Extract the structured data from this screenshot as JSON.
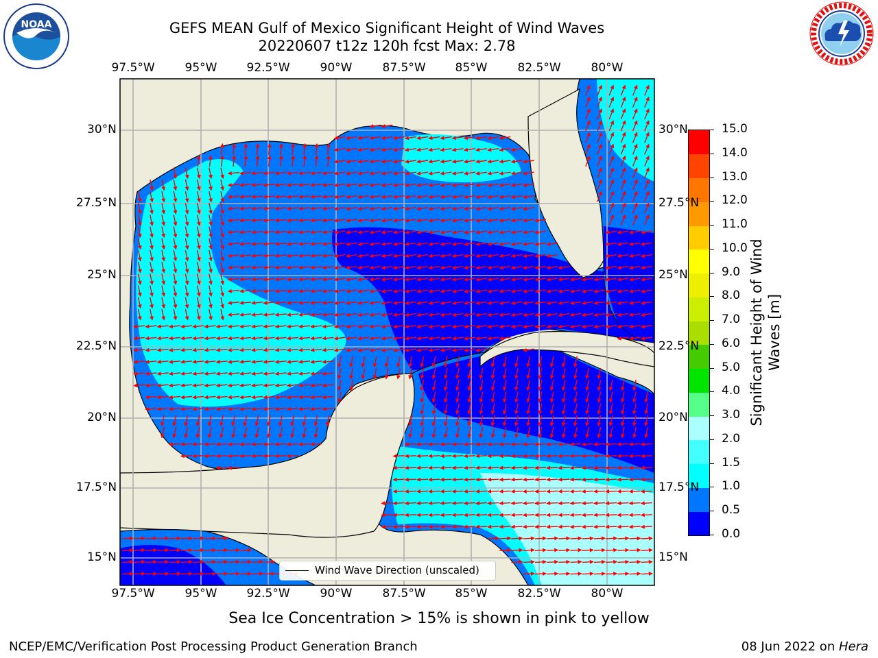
{
  "header": {
    "title_line1": "GEFS MEAN Gulf of Mexico Significant Height of Wind Waves",
    "title_line2": "20220607 t12z 120h fcst   Max: 2.78"
  },
  "logos": {
    "left": {
      "name": "NOAA",
      "ring_text": "NATIONAL OCEANIC AND ATMOSPHERIC ADMINISTRATION · U.S. DEPARTMENT OF COMMERCE"
    },
    "right": {
      "name": "NATIONAL WEATHER SERVICE"
    }
  },
  "map": {
    "lon_labels": [
      "97.5°W",
      "95°W",
      "92.5°W",
      "90°W",
      "87.5°W",
      "85°W",
      "82.5°W",
      "80°W"
    ],
    "lat_labels": [
      "30°N",
      "27.5°N",
      "25°N",
      "22.5°N",
      "20°N",
      "17.5°N",
      "15°N"
    ],
    "colors": {
      "land": "#eeeddc",
      "arrow": "#ff0000",
      "grid": "#b0b0b0",
      "coast": "#000000"
    }
  },
  "legend": {
    "label": "Wind Wave Direction (unscaled)"
  },
  "colorbar": {
    "title": "Significant Height of Wind Waves [m]",
    "title_lines": [
      "Significant Height of Wind",
      "Waves [m]"
    ],
    "ticks": [
      "0.0",
      "0.5",
      "1.0",
      "1.5",
      "2.0",
      "3.0",
      "4.0",
      "5.0",
      "6.0",
      "7.0",
      "8.0",
      "9.0",
      "10.0",
      "11.0",
      "12.0",
      "13.0",
      "14.0",
      "15.0"
    ],
    "colors": [
      "#0000ff",
      "#0077ff",
      "#00ffff",
      "#44ffff",
      "#aaffff",
      "#55ff88",
      "#00e400",
      "#44cc00",
      "#aadd00",
      "#ccee00",
      "#eeee00",
      "#ffff00",
      "#ffcc00",
      "#ff9900",
      "#ff7700",
      "#ff4400",
      "#ff0000"
    ]
  },
  "note": "Sea Ice Concentration > 15% is shown in pink to yellow",
  "footer": {
    "left": "NCEP/EMC/Verification Post Processing Product Generation Branch",
    "date": "08 Jun 2022 on ",
    "machine": "Hera"
  }
}
